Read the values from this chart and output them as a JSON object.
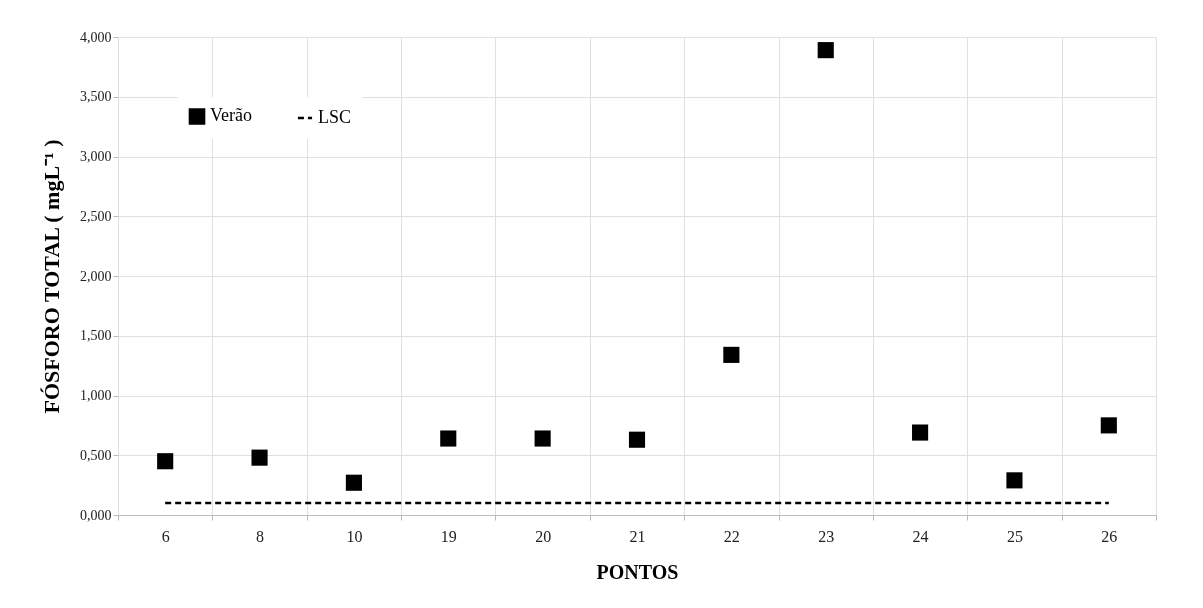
{
  "chart_data": {
    "type": "scatter",
    "xlabel": "PONTOS",
    "ylabel": "FÓSFORO TOTAL ( mgL⁻¹ )",
    "categories": [
      "6",
      "8",
      "10",
      "19",
      "20",
      "21",
      "22",
      "23",
      "24",
      "25",
      "26"
    ],
    "series": [
      {
        "name": "Verão",
        "color": "#000000",
        "marker": "square",
        "values": [
          0.45,
          0.48,
          0.27,
          0.64,
          0.64,
          0.63,
          1.34,
          3.89,
          0.69,
          0.29,
          0.75
        ]
      },
      {
        "name": "LSC",
        "type": "line",
        "color": "#000000",
        "marker": "none",
        "line_style": "dashed",
        "values": [
          0.1,
          0.1,
          0.1,
          0.1,
          0.1,
          0.1,
          0.1,
          0.1,
          0.1,
          0.1,
          0.1
        ]
      }
    ],
    "ylim": [
      0,
      4
    ],
    "yticks": [
      {
        "value": 0,
        "label": "0,000"
      },
      {
        "value": 0.5,
        "label": "0,500"
      },
      {
        "value": 1,
        "label": "1,000"
      },
      {
        "value": 1.5,
        "label": "1,500"
      },
      {
        "value": 2,
        "label": "2,000"
      },
      {
        "value": 2.5,
        "label": "2,500"
      },
      {
        "value": 3,
        "label": "3,000"
      },
      {
        "value": 3.5,
        "label": "3,500"
      },
      {
        "value": 4,
        "label": "4,000"
      }
    ],
    "grid": true,
    "legend": "top left"
  }
}
